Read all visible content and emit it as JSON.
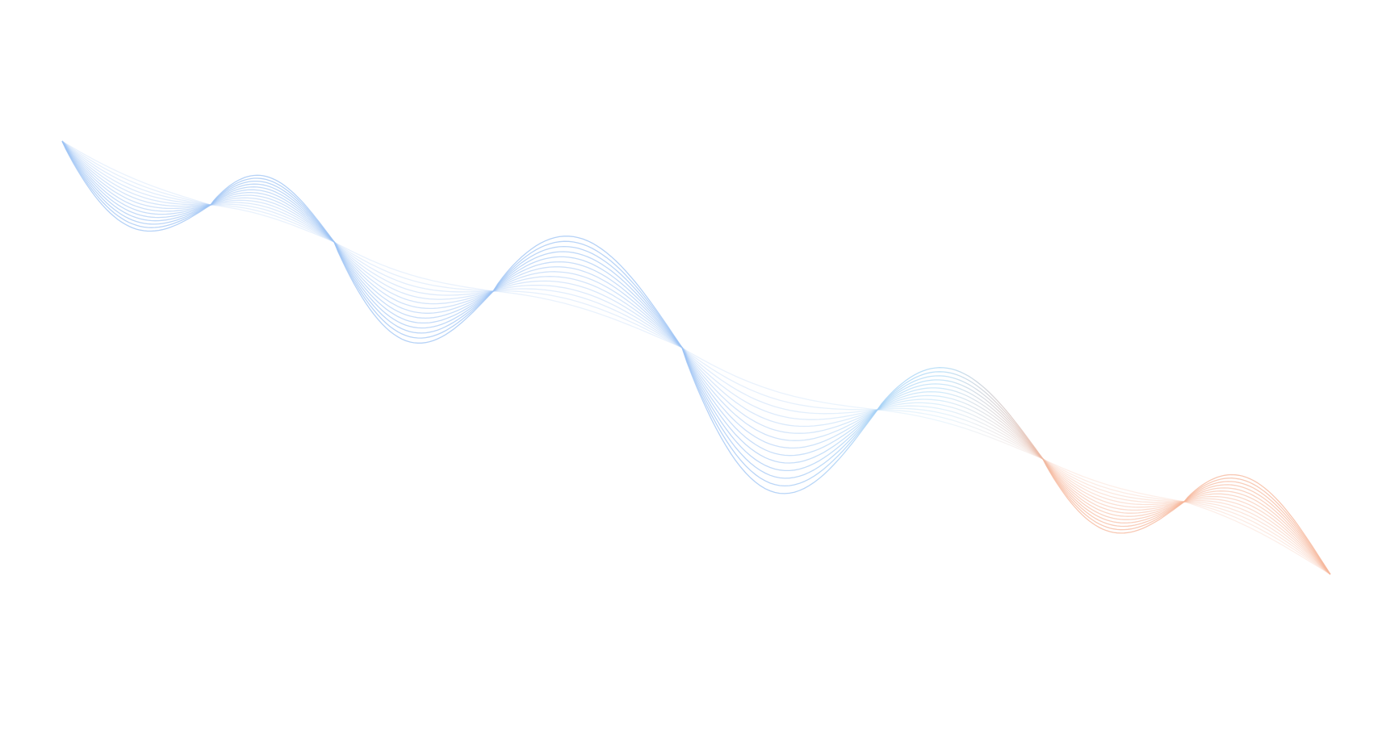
{
  "artwork": {
    "kind": "decorative-wave-lines",
    "colors": {
      "start": "#9dc3f4",
      "middle": "#a9d8f6",
      "end": "#f6b69a",
      "background": "#ffffff"
    }
  }
}
